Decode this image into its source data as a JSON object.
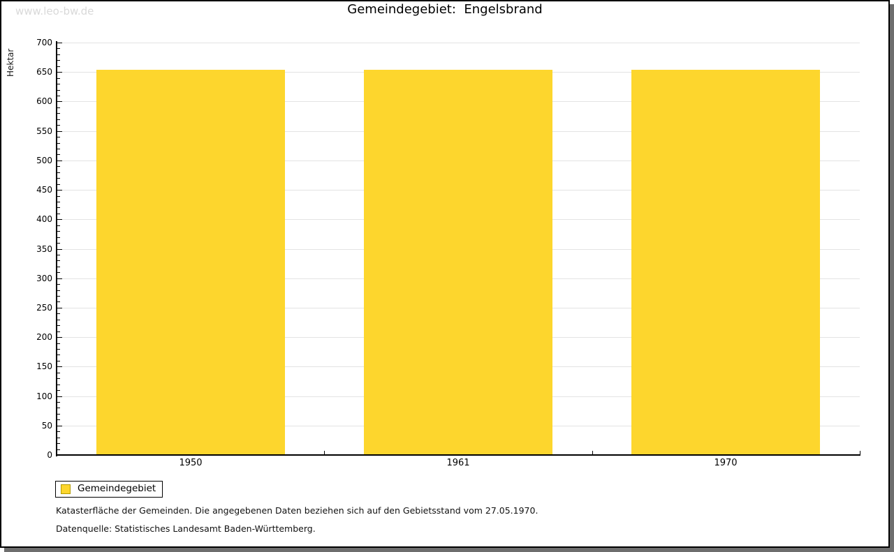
{
  "watermark": "www.leo-bw.de",
  "title": "Gemeindegebiet:  Engelsbrand",
  "legend": {
    "label": "Gemeindegebiet"
  },
  "footnotes": [
    "Katasterfläche der Gemeinden. Die angegebenen Daten beziehen sich auf den Gebietsstand vom 27.05.1970.",
    "Datenquelle: Statistisches Landesamt Baden-Württemberg."
  ],
  "colors": {
    "bar": "#fdd62d",
    "swatch_border": "#b39b00",
    "grid": "#e3e3e3",
    "axis": "#000000",
    "watermark": "#d9d9d9",
    "shadow": "#6e6e6e"
  },
  "chart_data": {
    "type": "bar",
    "title": "Gemeindegebiet:  Engelsbrand",
    "categories": [
      "1950",
      "1961",
      "1970"
    ],
    "series": [
      {
        "name": "Gemeindegebiet",
        "values": [
          654,
          654,
          654
        ]
      }
    ],
    "xlabel": "",
    "ylabel": "Hektar",
    "ylim": [
      0,
      700
    ],
    "y_major_step": 50,
    "y_minor_step": 10,
    "grid": true,
    "legend_position": "bottom-left",
    "bar_color": "#fdd62d"
  }
}
